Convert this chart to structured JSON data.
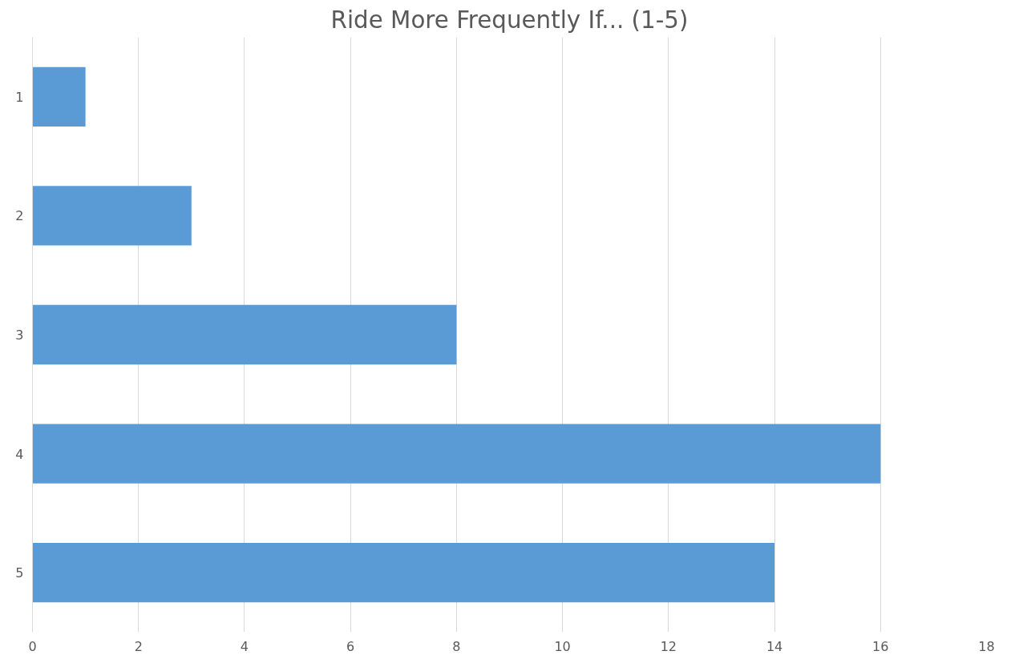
{
  "chart_data": {
    "type": "bar",
    "orientation": "horizontal",
    "title": "Ride More Frequently If... (1-5)",
    "categories": [
      "1",
      "2",
      "3",
      "4",
      "5"
    ],
    "values": [
      1,
      3,
      8,
      16,
      14
    ],
    "color": "#5b9bd5",
    "xlim": [
      0,
      18
    ],
    "xticks": [
      0,
      2,
      4,
      6,
      8,
      10,
      12,
      14,
      16,
      18
    ],
    "grid": "x"
  }
}
